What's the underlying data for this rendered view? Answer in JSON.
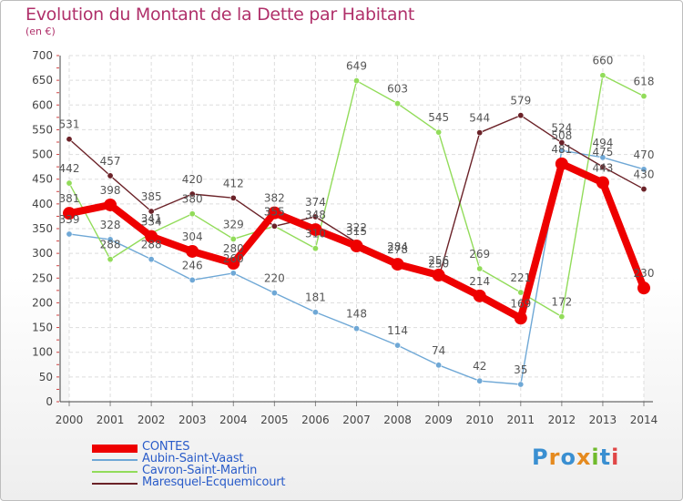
{
  "title": "Evolution du Montant de la Dette par Habitant",
  "unit_label": "(en €)",
  "logo_text": "Proxiti",
  "logo_letters": [
    {
      "ch": "P",
      "color": "#3a8fd1"
    },
    {
      "ch": "r",
      "color": "#e58a1f"
    },
    {
      "ch": "o",
      "color": "#3a8fd1"
    },
    {
      "ch": "x",
      "color": "#e58a1f"
    },
    {
      "ch": "i",
      "color": "#6fba2c"
    },
    {
      "ch": "t",
      "color": "#3a8fd1"
    },
    {
      "ch": "i",
      "color": "#e04646"
    }
  ],
  "chart_data": {
    "type": "line",
    "title": "Evolution du Montant de la Dette par Habitant",
    "ylabel": "(en €)",
    "xlabel": "",
    "ylim": [
      0,
      700
    ],
    "yticks": [
      0,
      50,
      100,
      150,
      200,
      250,
      300,
      350,
      400,
      450,
      500,
      550,
      600,
      650,
      700
    ],
    "grid": true,
    "legend_position": "bottom-left",
    "categories": [
      "2000",
      "2001",
      "2002",
      "2003",
      "2004",
      "2005",
      "2006",
      "2007",
      "2008",
      "2009",
      "2010",
      "2011",
      "2012",
      "2013",
      "2014"
    ],
    "series": [
      {
        "name": "CONTES",
        "color": "#ee0000",
        "emphasis": true,
        "values": [
          381,
          398,
          334,
          304,
          280,
          382,
          348,
          315,
          278,
          256,
          214,
          169,
          481,
          443,
          230
        ]
      },
      {
        "name": "Aubin-Saint-Vaast",
        "color": "#6fa8d6",
        "values": [
          339,
          328,
          288,
          246,
          260,
          220,
          181,
          148,
          114,
          74,
          42,
          35,
          508,
          494,
          470
        ]
      },
      {
        "name": "Cavron-Saint-Martin",
        "color": "#92dc5a",
        "values": [
          442,
          288,
          341,
          380,
          329,
          355,
          310,
          649,
          603,
          545,
          269,
          221,
          172,
          660,
          618
        ]
      },
      {
        "name": "Maresquel-Ecquemicourt",
        "color": "#6b2228",
        "values": [
          531,
          457,
          385,
          420,
          412,
          355,
          374,
          322,
          284,
          250,
          544,
          579,
          524,
          475,
          430
        ]
      }
    ],
    "data_labels": {
      "CONTES": [
        "381",
        "398",
        "334",
        "304",
        "280",
        "382",
        "348",
        "315",
        "278",
        "256",
        "214",
        "169",
        "481",
        "443",
        "230"
      ],
      "Aubin-Saint-Vaast": [
        "339",
        "328",
        "288",
        "246",
        "260",
        "220",
        "181",
        "148",
        "114",
        "74",
        "42",
        "35",
        "508",
        "494",
        "470"
      ],
      "Cavron-Saint-Martin": [
        "442",
        "288",
        "341",
        "380",
        "329",
        "355",
        "310",
        "649",
        "603",
        "545",
        "269",
        "221",
        "172",
        "660",
        "618"
      ],
      "Maresquel-Ecquemicourt": [
        "531",
        "457",
        "385",
        "420",
        "412",
        "355",
        "374",
        "322",
        "284",
        "250",
        "544",
        "579",
        "524",
        "475",
        "430"
      ]
    }
  }
}
